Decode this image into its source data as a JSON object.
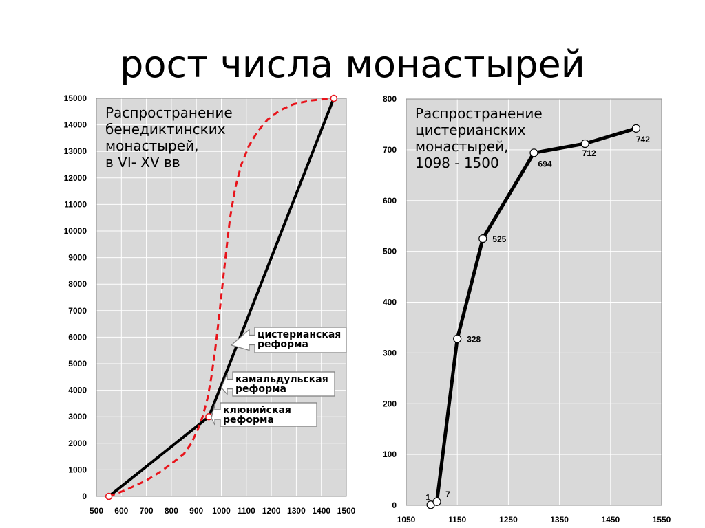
{
  "title": "рост числа монастырей",
  "chart_data": [
    {
      "type": "line",
      "annotation": [
        "Распространение",
        "бенедиктинских",
        "монастырей,",
        "в VI- XV вв"
      ],
      "xlim": [
        500,
        1500
      ],
      "ylim": [
        0,
        15000
      ],
      "x_ticks": [
        500,
        600,
        700,
        800,
        900,
        1000,
        1100,
        1200,
        1300,
        1400,
        1500
      ],
      "y_ticks": [
        0,
        1000,
        2000,
        3000,
        4000,
        5000,
        6000,
        7000,
        8000,
        9000,
        10000,
        11000,
        12000,
        13000,
        14000,
        15000
      ],
      "grid": true,
      "series": [
        {
          "style": "solid",
          "color": "#000000",
          "points": [
            [
              550,
              0
            ],
            [
              950,
              3000
            ],
            [
              1450,
              15000
            ]
          ]
        },
        {
          "style": "dashed",
          "color": "#e8141b",
          "points": [
            [
              550,
              0
            ],
            [
              620,
              250
            ],
            [
              700,
              600
            ],
            [
              760,
              950
            ],
            [
              810,
              1300
            ],
            [
              850,
              1600
            ],
            [
              880,
              2000
            ],
            [
              905,
              2500
            ],
            [
              925,
              3000
            ],
            [
              945,
              3700
            ],
            [
              960,
              4500
            ],
            [
              975,
              5500
            ],
            [
              990,
              6700
            ],
            [
              1005,
              8000
            ],
            [
              1020,
              9300
            ],
            [
              1035,
              10500
            ],
            [
              1055,
              11600
            ],
            [
              1080,
              12500
            ],
            [
              1110,
              13200
            ],
            [
              1145,
              13750
            ],
            [
              1185,
              14200
            ],
            [
              1235,
              14550
            ],
            [
              1290,
              14780
            ],
            [
              1360,
              14920
            ],
            [
              1450,
              15000
            ]
          ]
        }
      ],
      "callouts": [
        {
          "lines": [
            "цистерианская",
            "реформа"
          ],
          "target": [
            1040,
            5700
          ]
        },
        {
          "lines": [
            "камальдульская",
            "реформа"
          ],
          "target": [
            1000,
            4100
          ]
        },
        {
          "lines": [
            "клюнийская",
            "реформа"
          ],
          "target": [
            960,
            2950
          ]
        }
      ]
    },
    {
      "type": "line",
      "annotation": [
        "Распространение",
        "цистерианских",
        "монастырей,",
        "1098 - 1500"
      ],
      "xlim": [
        1050,
        1550
      ],
      "ylim": [
        0,
        800
      ],
      "x_ticks": [
        1050,
        1150,
        1250,
        1350,
        1450,
        1550
      ],
      "y_ticks": [
        0,
        100,
        200,
        300,
        400,
        500,
        600,
        700,
        800
      ],
      "grid": true,
      "x": [
        1098,
        1110,
        1150,
        1200,
        1300,
        1400,
        1500
      ],
      "y": [
        1,
        7,
        328,
        525,
        694,
        712,
        742
      ],
      "labels": [
        "1",
        "7",
        "328",
        "525",
        "694",
        "712",
        "742"
      ]
    }
  ]
}
